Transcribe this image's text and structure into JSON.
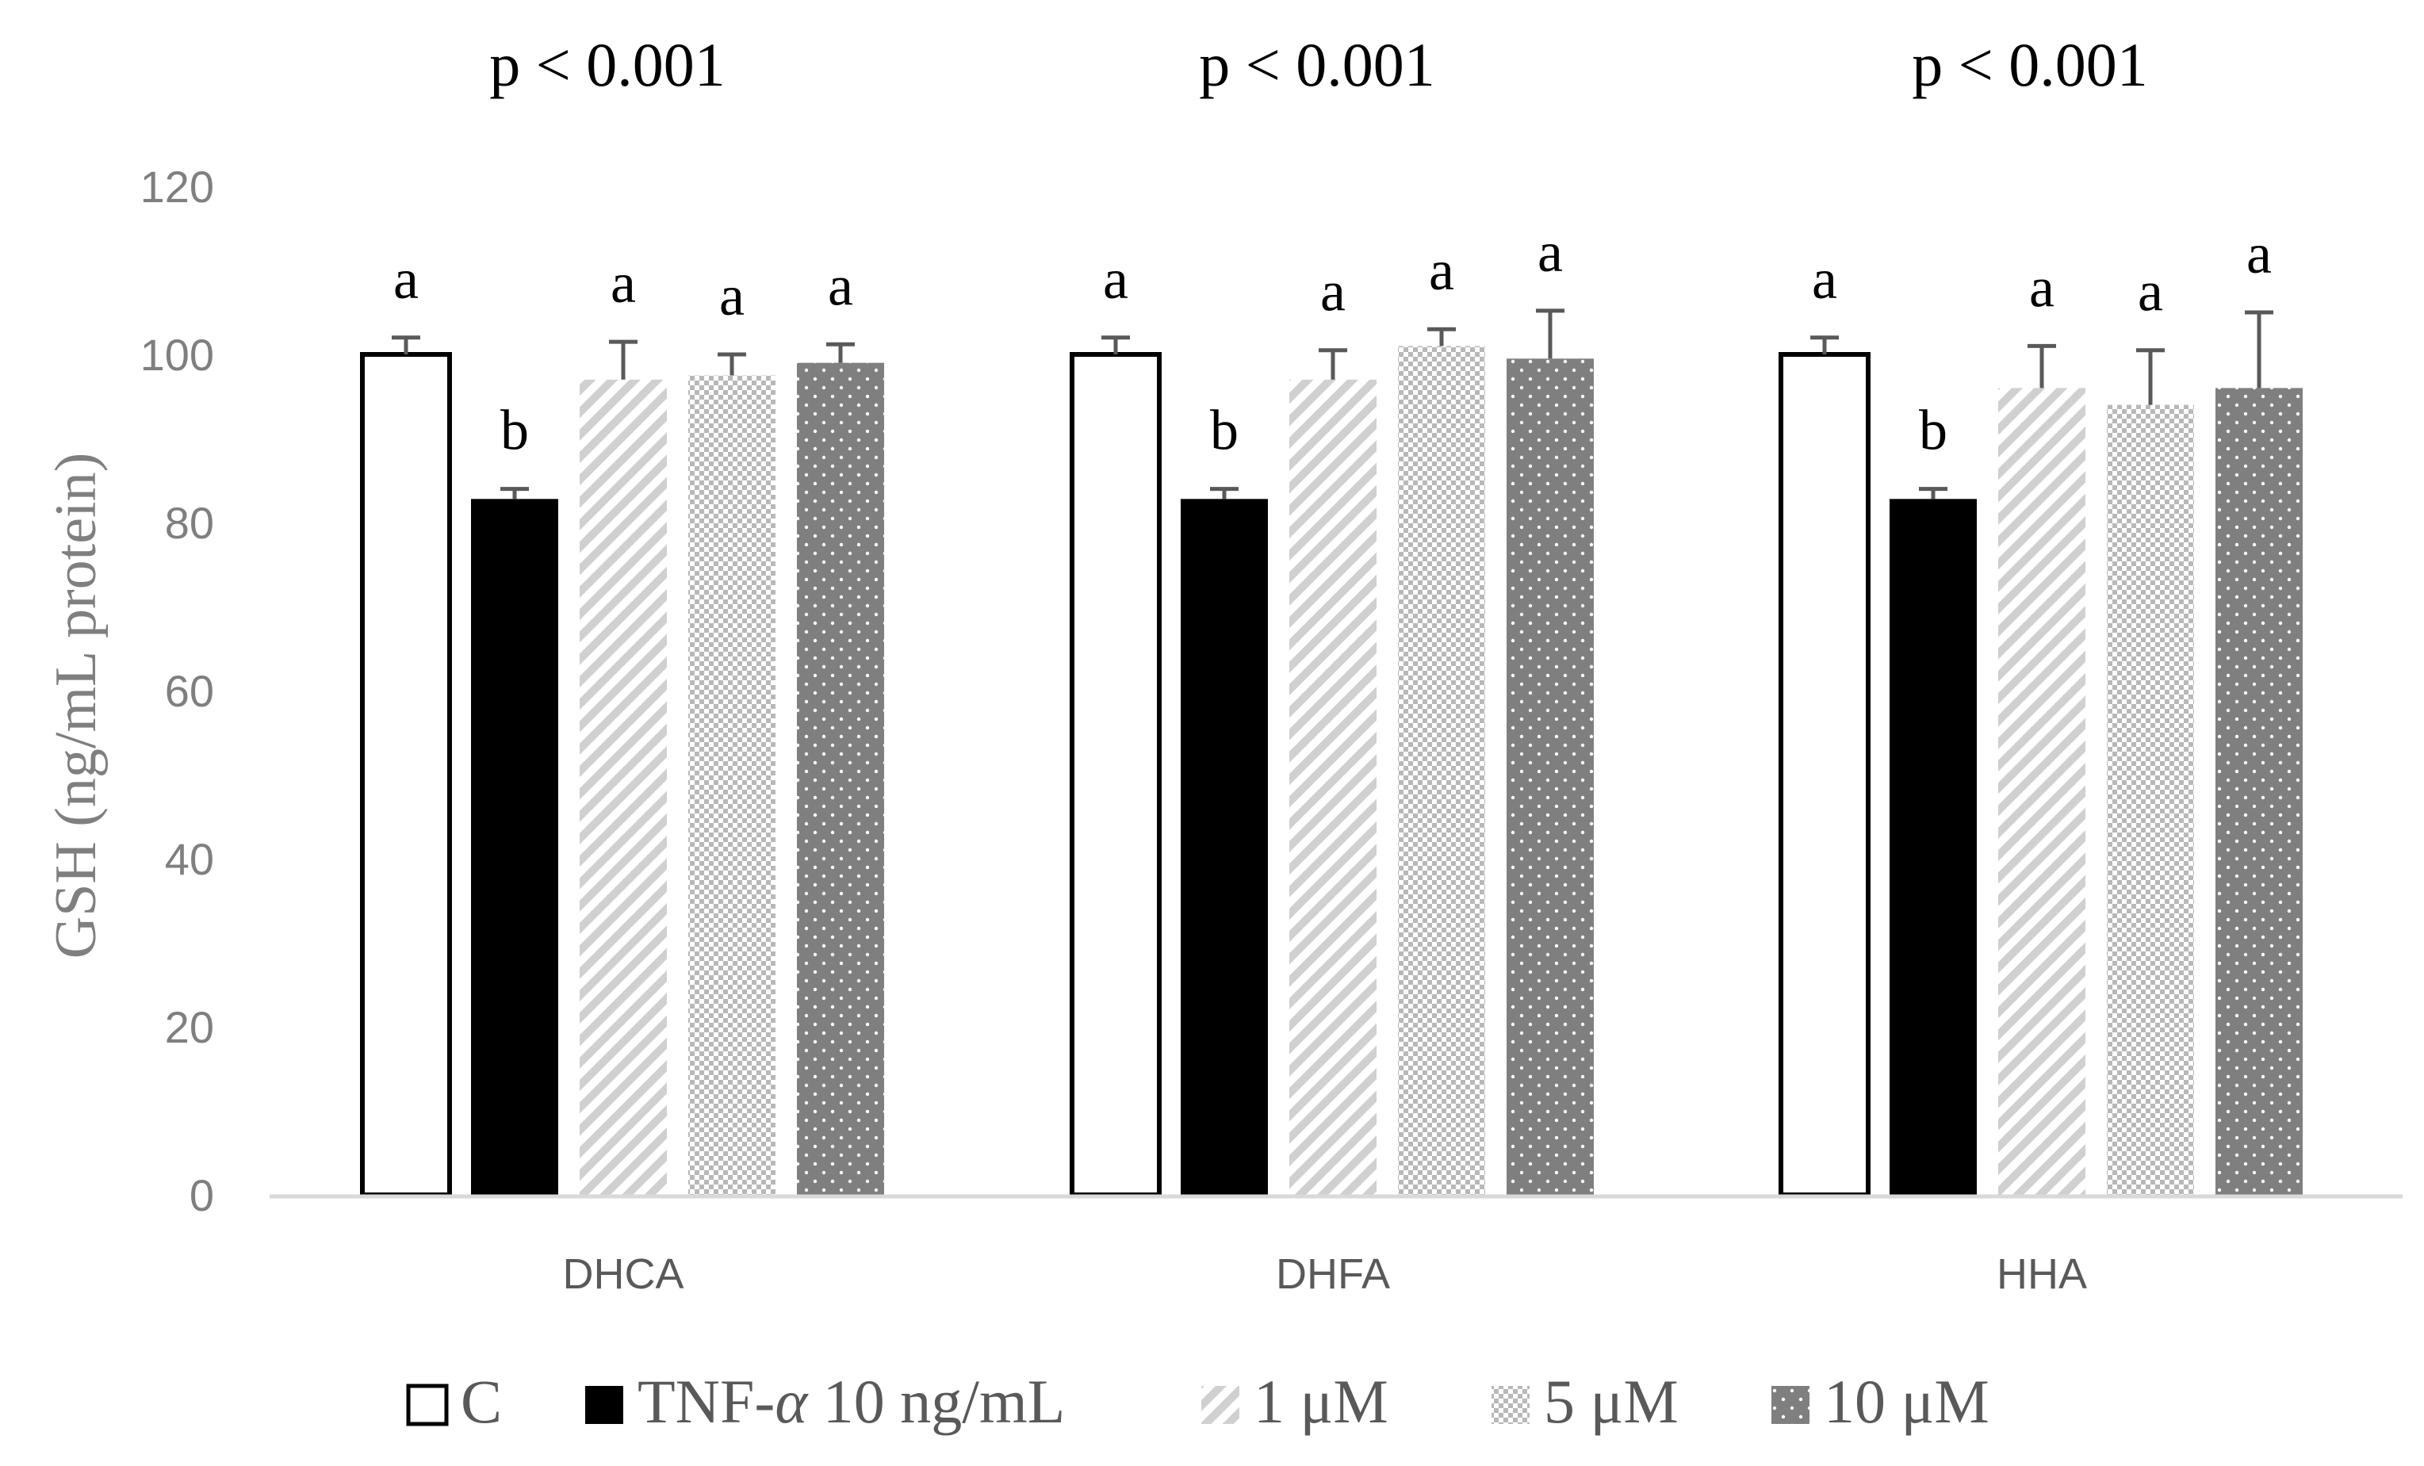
{
  "chart_data": {
    "type": "bar",
    "title": "",
    "xlabel": "",
    "ylabel": "GSH (ng/mL protein)",
    "ylim": [
      0,
      120
    ],
    "yticks": [
      "0",
      "20",
      "40",
      "60",
      "80",
      "100",
      "120"
    ],
    "grid": false,
    "legend_position": "bottom",
    "categories": [
      "DHCA",
      "DHFA",
      "HHA"
    ],
    "p_values": [
      "p < 0.001",
      "p < 0.001",
      "p < 0.001"
    ],
    "series": [
      {
        "name": "C",
        "legend_label": "C",
        "values": [
          100,
          100,
          100
        ],
        "errors": [
          2,
          2,
          2
        ],
        "letters": [
          "a",
          "a",
          "a"
        ],
        "fill": "white",
        "color": "#ffffff",
        "stroke": "#000000"
      },
      {
        "name": "TNF-α 10 ng/mL",
        "legend_prefix": "TNF-",
        "legend_italic": "α",
        "legend_suffix": " 10 ng/mL",
        "values": [
          82.8,
          82.8,
          82.8
        ],
        "errors": [
          1.2,
          1.2,
          1.2
        ],
        "letters": [
          "b",
          "b",
          "b"
        ],
        "fill": "solid",
        "color": "#000000"
      },
      {
        "name": "1 μM",
        "legend_label": "1 μM",
        "values": [
          97,
          97,
          96
        ],
        "errors": [
          4.5,
          3.5,
          5
        ],
        "letters": [
          "a",
          "a",
          "a"
        ],
        "fill": "diagonal",
        "color": "#d0d0d0"
      },
      {
        "name": "5 μM",
        "legend_label": "5 μM",
        "values": [
          97.5,
          101,
          94
        ],
        "errors": [
          2.5,
          2,
          6.5
        ],
        "letters": [
          "a",
          "a",
          "a"
        ],
        "fill": "checker",
        "color": "#bdbdbd"
      },
      {
        "name": "10 μM",
        "legend_label": "10 μM",
        "values": [
          99,
          99.5,
          96
        ],
        "errors": [
          2.2,
          5.7,
          9
        ],
        "letters": [
          "a",
          "a",
          "a"
        ],
        "fill": "dots",
        "color": "#7f7f7f"
      }
    ],
    "colors": {
      "axis": "#d9d9d9",
      "tick_text": "#7f7f7f",
      "error_bar": "#595959",
      "text": "#000000"
    }
  }
}
